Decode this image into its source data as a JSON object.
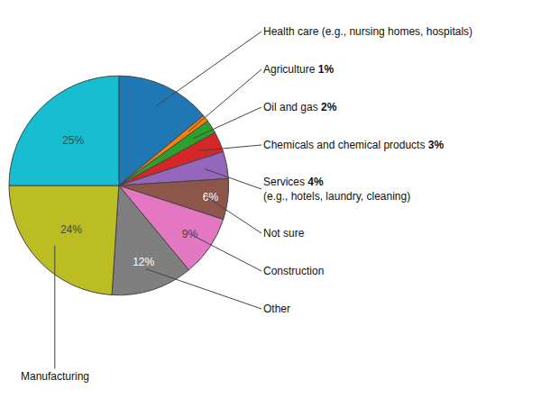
{
  "chart_data": {
    "type": "pie",
    "categories": [
      "Health care (e.g., nursing homes, hospitals)",
      "Agriculture",
      "Oil and gas",
      "Chemicals and chemical products",
      "Services",
      "Not sure",
      "Construction",
      "Other",
      "Manufacturing",
      null
    ],
    "values": [
      14,
      1,
      2,
      3,
      4,
      6,
      9,
      12,
      24,
      25
    ],
    "value_labels": [
      null,
      "1%",
      "2%",
      "3%",
      "4%",
      "6%",
      "9%",
      "12%",
      "24%",
      "25%"
    ],
    "annotations": [
      {
        "category": "Services",
        "text": "(e.g., hotels, laundry, cleaning)"
      }
    ],
    "data_labels": true
  }
}
